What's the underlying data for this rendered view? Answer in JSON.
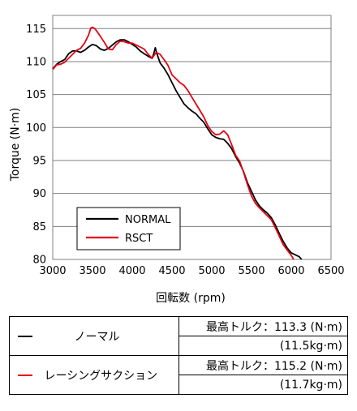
{
  "chart_data": {
    "type": "line",
    "xlabel": "回転数 (rpm)",
    "ylabel": "Torque (N·m)",
    "xlim": [
      3000,
      6500
    ],
    "ylim": [
      80,
      117
    ],
    "x_ticks": [
      3000,
      3500,
      4000,
      4500,
      5000,
      5500,
      6000,
      6500
    ],
    "y_ticks": [
      80,
      85,
      90,
      95,
      100,
      105,
      110,
      115
    ],
    "grid": "horizontal",
    "legend_position": "bottom-left",
    "series": [
      {
        "name": "NORMAL",
        "color": "#000000",
        "points": [
          [
            3000,
            108.9
          ],
          [
            3050,
            109.6
          ],
          [
            3100,
            110.0
          ],
          [
            3150,
            110.3
          ],
          [
            3200,
            111.2
          ],
          [
            3250,
            111.6
          ],
          [
            3300,
            111.6
          ],
          [
            3350,
            111.4
          ],
          [
            3400,
            111.7
          ],
          [
            3450,
            112.2
          ],
          [
            3500,
            112.6
          ],
          [
            3550,
            112.4
          ],
          [
            3600,
            111.9
          ],
          [
            3650,
            111.7
          ],
          [
            3700,
            112.0
          ],
          [
            3750,
            112.5
          ],
          [
            3800,
            113.0
          ],
          [
            3850,
            113.3
          ],
          [
            3900,
            113.3
          ],
          [
            3950,
            113.0
          ],
          [
            4000,
            112.6
          ],
          [
            4050,
            112.2
          ],
          [
            4100,
            111.6
          ],
          [
            4150,
            111.2
          ],
          [
            4200,
            110.8
          ],
          [
            4250,
            110.5
          ],
          [
            4270,
            111.2
          ],
          [
            4290,
            112.1
          ],
          [
            4310,
            111.2
          ],
          [
            4350,
            109.8
          ],
          [
            4400,
            109.0
          ],
          [
            4450,
            108.0
          ],
          [
            4500,
            106.8
          ],
          [
            4550,
            105.6
          ],
          [
            4600,
            104.6
          ],
          [
            4650,
            103.6
          ],
          [
            4700,
            103.0
          ],
          [
            4750,
            102.5
          ],
          [
            4800,
            102.1
          ],
          [
            4850,
            101.4
          ],
          [
            4900,
            100.8
          ],
          [
            4950,
            99.8
          ],
          [
            5000,
            98.9
          ],
          [
            5050,
            98.5
          ],
          [
            5100,
            98.3
          ],
          [
            5150,
            98.2
          ],
          [
            5200,
            97.6
          ],
          [
            5250,
            96.8
          ],
          [
            5300,
            95.6
          ],
          [
            5350,
            94.6
          ],
          [
            5400,
            93.3
          ],
          [
            5450,
            91.6
          ],
          [
            5500,
            90.3
          ],
          [
            5550,
            89.0
          ],
          [
            5600,
            88.1
          ],
          [
            5650,
            87.5
          ],
          [
            5700,
            87.0
          ],
          [
            5750,
            86.3
          ],
          [
            5800,
            85.2
          ],
          [
            5850,
            83.9
          ],
          [
            5900,
            82.7
          ],
          [
            5950,
            81.7
          ],
          [
            6000,
            81.0
          ],
          [
            6050,
            80.7
          ],
          [
            6100,
            80.4
          ],
          [
            6130,
            80.0
          ]
        ]
      },
      {
        "name": "RSCT",
        "color": "#e60012",
        "points": [
          [
            3000,
            108.8
          ],
          [
            3050,
            109.5
          ],
          [
            3100,
            109.6
          ],
          [
            3150,
            109.9
          ],
          [
            3200,
            110.5
          ],
          [
            3250,
            111.1
          ],
          [
            3300,
            111.7
          ],
          [
            3350,
            112.0
          ],
          [
            3400,
            112.8
          ],
          [
            3450,
            114.0
          ],
          [
            3480,
            115.1
          ],
          [
            3500,
            115.2
          ],
          [
            3530,
            115.0
          ],
          [
            3560,
            114.5
          ],
          [
            3600,
            113.8
          ],
          [
            3650,
            112.9
          ],
          [
            3700,
            111.9
          ],
          [
            3750,
            111.8
          ],
          [
            3800,
            112.6
          ],
          [
            3850,
            113.1
          ],
          [
            3900,
            113.0
          ],
          [
            3950,
            112.8
          ],
          [
            4000,
            112.8
          ],
          [
            4050,
            112.5
          ],
          [
            4100,
            112.2
          ],
          [
            4150,
            111.9
          ],
          [
            4200,
            111.1
          ],
          [
            4250,
            110.5
          ],
          [
            4300,
            111.4
          ],
          [
            4350,
            111.1
          ],
          [
            4400,
            110.3
          ],
          [
            4450,
            109.4
          ],
          [
            4500,
            108.0
          ],
          [
            4550,
            107.4
          ],
          [
            4600,
            106.8
          ],
          [
            4650,
            106.4
          ],
          [
            4700,
            105.6
          ],
          [
            4750,
            104.6
          ],
          [
            4800,
            103.6
          ],
          [
            4850,
            102.6
          ],
          [
            4900,
            101.6
          ],
          [
            4950,
            100.3
          ],
          [
            5000,
            99.4
          ],
          [
            5050,
            98.9
          ],
          [
            5100,
            99.0
          ],
          [
            5150,
            99.5
          ],
          [
            5200,
            98.9
          ],
          [
            5250,
            97.4
          ],
          [
            5300,
            95.8
          ],
          [
            5350,
            94.9
          ],
          [
            5400,
            93.2
          ],
          [
            5450,
            91.3
          ],
          [
            5500,
            89.6
          ],
          [
            5550,
            88.5
          ],
          [
            5600,
            87.8
          ],
          [
            5650,
            87.2
          ],
          [
            5700,
            86.6
          ],
          [
            5750,
            86.0
          ],
          [
            5800,
            84.8
          ],
          [
            5850,
            83.5
          ],
          [
            5900,
            82.2
          ],
          [
            5950,
            81.4
          ],
          [
            6000,
            80.6
          ],
          [
            6030,
            80.0
          ]
        ]
      }
    ]
  },
  "table": {
    "rows": [
      {
        "name": "ノーマル",
        "color": "#000000",
        "max_torque": "最高トルク：113.3 (N·m)",
        "kg": "(11.5kg·m)"
      },
      {
        "name": "レーシングサクション",
        "color": "#e60012",
        "max_torque": "最高トルク：115.2 (N·m)",
        "kg": "(11.7kg·m)"
      }
    ]
  }
}
